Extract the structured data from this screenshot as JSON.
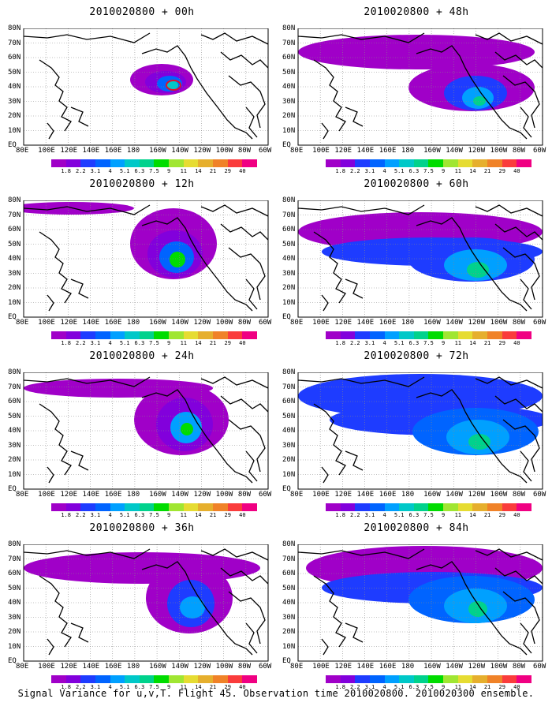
{
  "caption": "Signal Variance for u,v,T. Flight 45. Observation time 2010020800. 2010020300 ensemble.",
  "lat_labels": [
    "80N",
    "70N",
    "60N",
    "50N",
    "40N",
    "30N",
    "20N",
    "10N",
    "EQ"
  ],
  "lon_labels": [
    "80E",
    "100E",
    "120E",
    "140E",
    "160E",
    "180",
    "160W",
    "140W",
    "120W",
    "100W",
    "80W",
    "60W"
  ],
  "colorbar": {
    "labels": [
      "1.8",
      "2.2",
      "3.1",
      "4",
      "5.1",
      "6.3",
      "7.5",
      "9",
      "11",
      "14",
      "21",
      "29",
      "40"
    ],
    "colors": [
      "#a000c8",
      "#8200dc",
      "#1e3cff",
      "#0064ff",
      "#00a0ff",
      "#00c8c8",
      "#00d28c",
      "#00dc00",
      "#a0e632",
      "#e6dc32",
      "#e6af2d",
      "#f08228",
      "#fa3c3c",
      "#f00082"
    ]
  },
  "panels": [
    {
      "title": "2010020800 + 00h"
    },
    {
      "title": "2010020800 + 48h"
    },
    {
      "title": "2010020800 + 12h"
    },
    {
      "title": "2010020800 + 60h"
    },
    {
      "title": "2010020800 + 24h"
    },
    {
      "title": "2010020800 + 72h"
    },
    {
      "title": "2010020800 + 36h"
    },
    {
      "title": "2010020800 + 84h"
    }
  ]
}
